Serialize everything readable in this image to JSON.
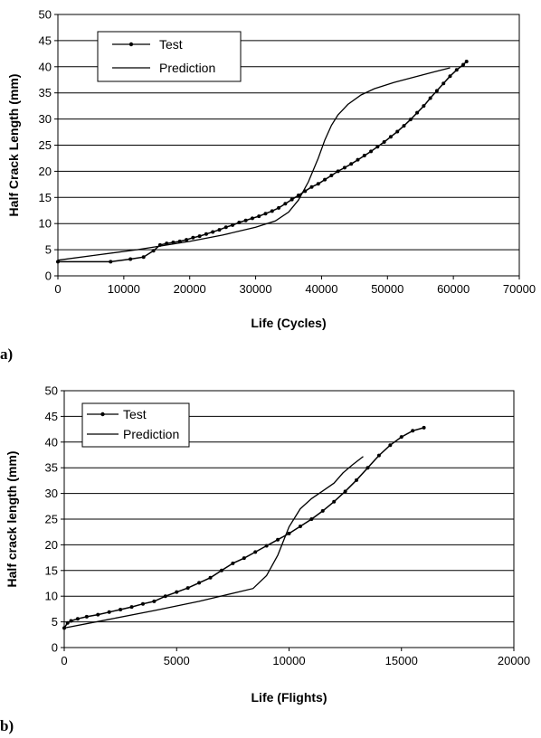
{
  "chart_data": [
    {
      "type": "line",
      "panel_label": "a)",
      "xlabel": "Life (Cycles)",
      "ylabel": "Half Crack Length (mm)",
      "xlim": [
        0,
        70000
      ],
      "ylim": [
        0,
        50
      ],
      "xticks": [
        0,
        10000,
        20000,
        30000,
        40000,
        50000,
        60000,
        70000
      ],
      "yticks": [
        0,
        5,
        10,
        15,
        20,
        25,
        30,
        35,
        40,
        45,
        50
      ],
      "grid": "horizontal",
      "legend_position": "top-left",
      "series": [
        {
          "name": "Test",
          "marker": "circle",
          "x": [
            0,
            8000,
            11000,
            13000,
            14500,
            15500,
            16500,
            17500,
            18500,
            19500,
            20500,
            21500,
            22500,
            23500,
            24500,
            25500,
            26500,
            27500,
            28500,
            29500,
            30500,
            31500,
            32500,
            33500,
            34500,
            35500,
            36500,
            37500,
            38500,
            39500,
            40500,
            41500,
            42500,
            43500,
            44500,
            45500,
            46500,
            47500,
            48500,
            49500,
            50500,
            51500,
            52500,
            53500,
            54500,
            55500,
            56500,
            57500,
            58500,
            59500,
            60500,
            61500,
            62000
          ],
          "y": [
            2.7,
            2.7,
            3.2,
            3.6,
            4.8,
            5.9,
            6.2,
            6.4,
            6.6,
            6.9,
            7.3,
            7.6,
            8.0,
            8.4,
            8.8,
            9.3,
            9.7,
            10.2,
            10.6,
            11.0,
            11.4,
            11.9,
            12.4,
            13.0,
            13.8,
            14.6,
            15.4,
            16.2,
            17.0,
            17.6,
            18.4,
            19.2,
            20.0,
            20.7,
            21.4,
            22.2,
            23.0,
            23.8,
            24.7,
            25.6,
            26.6,
            27.6,
            28.7,
            29.9,
            31.2,
            32.5,
            34.0,
            35.4,
            36.8,
            38.2,
            39.4,
            40.4,
            41.0
          ]
        },
        {
          "name": "Prediction",
          "marker": "none",
          "x": [
            0,
            6000,
            12000,
            16000,
            20000,
            25000,
            30000,
            33000,
            35000,
            36500,
            38000,
            39500,
            40500,
            41500,
            42500,
            44000,
            46000,
            48000,
            51000,
            54000,
            57000,
            59500
          ],
          "y": [
            3.0,
            4.0,
            5.0,
            5.8,
            6.6,
            7.8,
            9.3,
            10.5,
            12.2,
            14.5,
            18.0,
            22.5,
            26.0,
            28.8,
            30.8,
            32.8,
            34.6,
            35.8,
            37.0,
            38.0,
            39.0,
            39.8
          ]
        }
      ]
    },
    {
      "type": "line",
      "panel_label": "b)",
      "xlabel": "Life (Flights)",
      "ylabel": "Half crack length (mm)",
      "xlim": [
        0,
        20000
      ],
      "ylim": [
        0,
        50
      ],
      "xticks": [
        0,
        5000,
        10000,
        15000,
        20000
      ],
      "yticks": [
        0,
        5,
        10,
        15,
        20,
        25,
        30,
        35,
        40,
        45,
        50
      ],
      "grid": "horizontal",
      "legend_position": "top-left",
      "series": [
        {
          "name": "Test",
          "marker": "circle",
          "x": [
            0,
            150,
            300,
            600,
            1000,
            1500,
            2000,
            2500,
            3000,
            3500,
            4000,
            4500,
            5000,
            5500,
            6000,
            6500,
            7000,
            7500,
            8000,
            8500,
            9000,
            9500,
            10000,
            10500,
            11000,
            11500,
            12000,
            12500,
            13000,
            13500,
            14000,
            14500,
            15000,
            15500,
            16000
          ],
          "y": [
            3.8,
            4.8,
            5.2,
            5.6,
            6.0,
            6.4,
            6.9,
            7.4,
            7.9,
            8.5,
            9.0,
            10.0,
            10.8,
            11.6,
            12.6,
            13.6,
            15.0,
            16.4,
            17.4,
            18.6,
            19.8,
            21.0,
            22.2,
            23.6,
            25.0,
            26.6,
            28.4,
            30.4,
            32.6,
            35.0,
            37.4,
            39.4,
            41.0,
            42.2,
            42.8
          ]
        },
        {
          "name": "Prediction",
          "marker": "none",
          "x": [
            0,
            2000,
            4000,
            6000,
            8400,
            9000,
            9500,
            10000,
            10500,
            11000,
            11500,
            12000,
            12400,
            12800,
            13300
          ],
          "y": [
            3.8,
            5.5,
            7.2,
            9.0,
            11.5,
            14.0,
            18.0,
            23.5,
            27.0,
            29.0,
            30.5,
            32.0,
            34.0,
            35.5,
            37.2
          ]
        }
      ]
    }
  ]
}
